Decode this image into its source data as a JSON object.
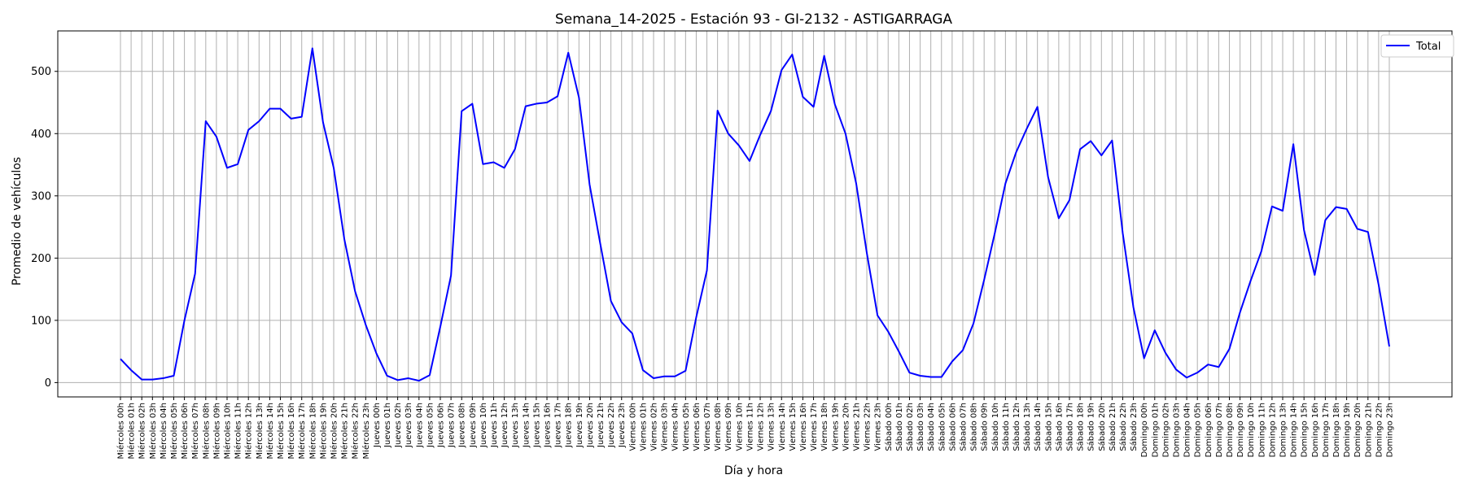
{
  "chart_data": {
    "type": "line",
    "title": "Semana_14-2025 - Estación 93 - GI-2132  - ASTIGARRAGA",
    "xlabel": "Día y hora",
    "ylabel": "Promedio de vehículos",
    "ylim": [
      -23,
      565
    ],
    "yticks": [
      0,
      100,
      200,
      300,
      400,
      500
    ],
    "grid": true,
    "legend_position": "upper right",
    "categories": [
      "Miércoles 00h",
      "Miércoles 01h",
      "Miércoles 02h",
      "Miércoles 03h",
      "Miércoles 04h",
      "Miércoles 05h",
      "Miércoles 06h",
      "Miércoles 07h",
      "Miércoles 08h",
      "Miércoles 09h",
      "Miércoles 10h",
      "Miércoles 11h",
      "Miércoles 12h",
      "Miércoles 13h",
      "Miércoles 14h",
      "Miércoles 15h",
      "Miércoles 16h",
      "Miércoles 17h",
      "Miércoles 18h",
      "Miércoles 19h",
      "Miércoles 20h",
      "Miércoles 21h",
      "Miércoles 22h",
      "Miércoles 23h",
      "Jueves 00h",
      "Jueves 01h",
      "Jueves 02h",
      "Jueves 03h",
      "Jueves 04h",
      "Jueves 05h",
      "Jueves 06h",
      "Jueves 07h",
      "Jueves 08h",
      "Jueves 09h",
      "Jueves 10h",
      "Jueves 11h",
      "Jueves 12h",
      "Jueves 13h",
      "Jueves 14h",
      "Jueves 15h",
      "Jueves 16h",
      "Jueves 17h",
      "Jueves 18h",
      "Jueves 19h",
      "Jueves 20h",
      "Jueves 21h",
      "Jueves 22h",
      "Jueves 23h",
      "Viernes 00h",
      "Viernes 01h",
      "Viernes 02h",
      "Viernes 03h",
      "Viernes 04h",
      "Viernes 05h",
      "Viernes 06h",
      "Viernes 07h",
      "Viernes 08h",
      "Viernes 09h",
      "Viernes 10h",
      "Viernes 11h",
      "Viernes 12h",
      "Viernes 13h",
      "Viernes 14h",
      "Viernes 15h",
      "Viernes 16h",
      "Viernes 17h",
      "Viernes 18h",
      "Viernes 19h",
      "Viernes 20h",
      "Viernes 21h",
      "Viernes 22h",
      "Viernes 23h",
      "Sábado 00h",
      "Sábado 01h",
      "Sábado 02h",
      "Sábado 03h",
      "Sábado 04h",
      "Sábado 05h",
      "Sábado 06h",
      "Sábado 07h",
      "Sábado 08h",
      "Sábado 09h",
      "Sábado 10h",
      "Sábado 11h",
      "Sábado 12h",
      "Sábado 13h",
      "Sábado 14h",
      "Sábado 15h",
      "Sábado 16h",
      "Sábado 17h",
      "Sábado 18h",
      "Sábado 19h",
      "Sábado 20h",
      "Sábado 21h",
      "Sábado 22h",
      "Sábado 23h",
      "Domingo 00h",
      "Domingo 01h",
      "Domingo 02h",
      "Domingo 03h",
      "Domingo 04h",
      "Domingo 05h",
      "Domingo 06h",
      "Domingo 07h",
      "Domingo 08h",
      "Domingo 09h",
      "Domingo 10h",
      "Domingo 11h",
      "Domingo 12h",
      "Domingo 13h",
      "Domingo 14h",
      "Domingo 15h",
      "Domingo 16h",
      "Domingo 17h",
      "Domingo 18h",
      "Domingo 19h",
      "Domingo 20h",
      "Domingo 21h",
      "Domingo 22h",
      "Domingo 23h"
    ],
    "series": [
      {
        "name": "Total",
        "color": "#0000ff",
        "values": [
          38,
          20,
          5,
          5,
          7,
          11,
          100,
          175,
          420,
          395,
          345,
          351,
          406,
          420,
          440,
          440,
          424,
          427,
          537,
          418,
          345,
          230,
          147,
          93,
          47,
          11,
          4,
          7,
          3,
          12,
          90,
          172,
          436,
          448,
          351,
          354,
          345,
          375,
          444,
          448,
          450,
          460,
          530,
          458,
          318,
          223,
          131,
          97,
          79,
          20,
          7,
          10,
          10,
          19,
          105,
          180,
          437,
          400,
          381,
          356,
          398,
          436,
          502,
          527,
          459,
          443,
          525,
          447,
          400,
          320,
          208,
          108,
          82,
          50,
          16,
          11,
          9,
          9,
          34,
          52,
          95,
          165,
          240,
          320,
          370,
          408,
          443,
          330,
          264,
          293,
          375,
          388,
          365,
          389,
          240,
          121,
          39,
          84,
          48,
          21,
          8,
          16,
          29,
          25,
          54,
          113,
          164,
          211,
          283,
          276,
          383,
          245,
          173,
          261,
          282,
          279,
          247,
          242,
          157,
          58
        ]
      }
    ]
  }
}
